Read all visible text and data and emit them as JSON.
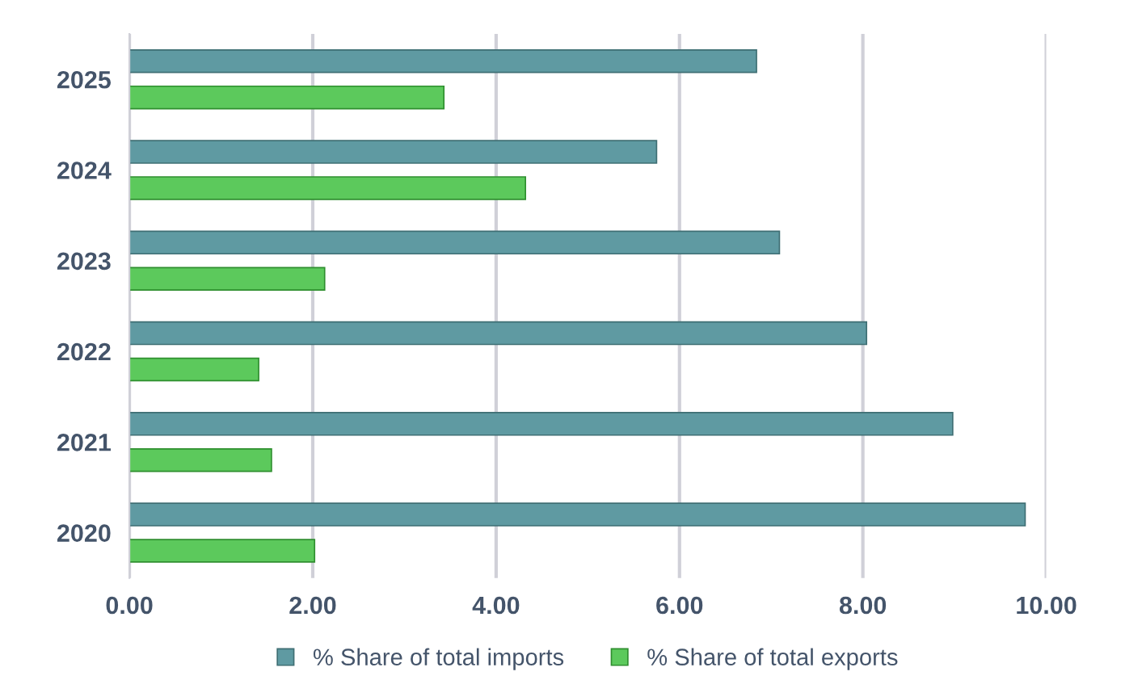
{
  "chart_data": {
    "type": "bar",
    "orientation": "horizontal",
    "categories": [
      "2025",
      "2024",
      "2023",
      "2022",
      "2021",
      "2020"
    ],
    "series": [
      {
        "name": "% Share of total imports",
        "color": "#5f9aa2",
        "values": [
          6.84,
          5.75,
          7.09,
          8.04,
          8.98,
          9.77
        ]
      },
      {
        "name": "% Share of total exports",
        "color": "#5cc95c",
        "values": [
          3.43,
          4.32,
          2.13,
          1.41,
          1.55,
          2.02
        ]
      }
    ],
    "xlim": [
      0,
      10
    ],
    "xticks": [
      {
        "value": 0,
        "label": "0.00"
      },
      {
        "value": 2,
        "label": "2.00"
      },
      {
        "value": 4,
        "label": "4.00"
      },
      {
        "value": 6,
        "label": "6.00"
      },
      {
        "value": 8,
        "label": "8.00"
      },
      {
        "value": 10,
        "label": "10.00"
      }
    ],
    "grid": "x",
    "legend": "bottom"
  }
}
